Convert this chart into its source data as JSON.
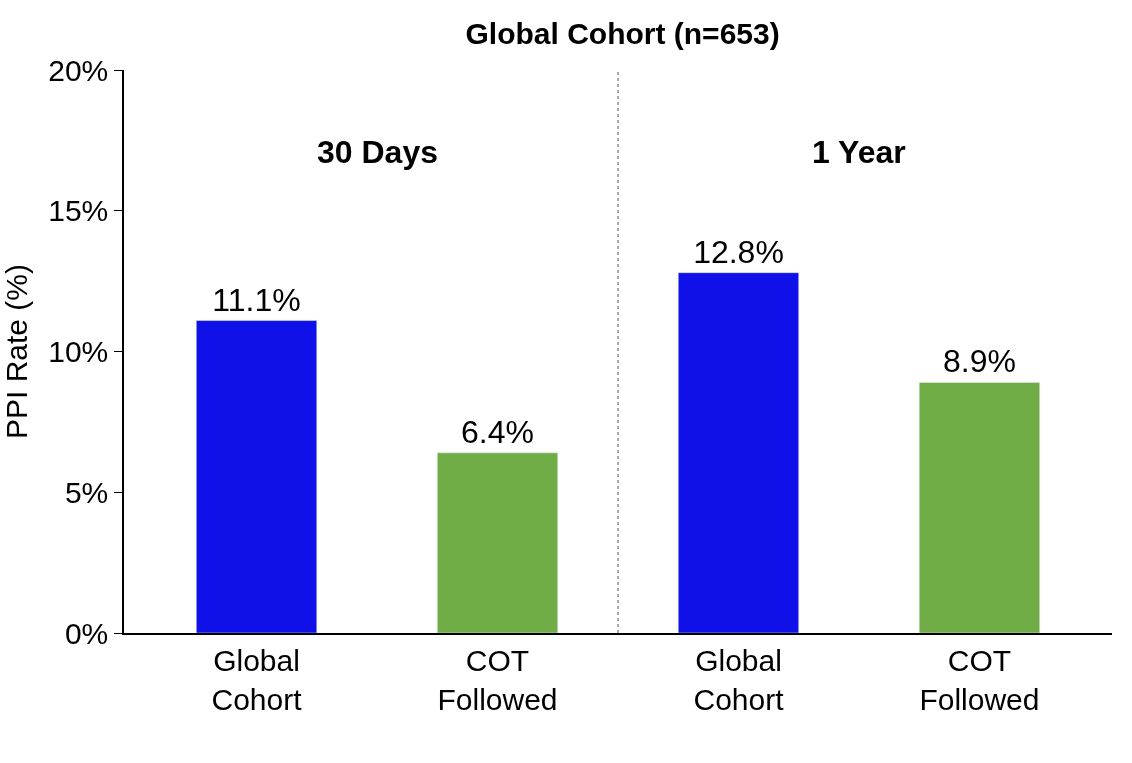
{
  "chart_data": {
    "type": "bar",
    "title": "Global Cohort (n=653)",
    "ylabel": "PPI Rate (%)",
    "categories": [
      "Global Cohort",
      "COT Followed",
      "Global Cohort",
      "COT Followed"
    ],
    "values": [
      11.1,
      6.4,
      12.8,
      8.9
    ],
    "colors": [
      "#1010e8",
      "#70ad47",
      "#1010e8",
      "#70ad47"
    ],
    "value_labels": [
      "11.1%",
      "6.4%",
      "12.8%",
      "8.9%"
    ],
    "ylim": [
      0,
      20
    ],
    "yticks": [
      {
        "value": 0,
        "label": "0%"
      },
      {
        "value": 5,
        "label": "5%"
      },
      {
        "value": 10,
        "label": "10%"
      },
      {
        "value": 15,
        "label": "15%"
      },
      {
        "value": 20,
        "label": "20%"
      }
    ],
    "annotations": [
      "30 Days",
      "1 Year"
    ],
    "legend": false
  }
}
